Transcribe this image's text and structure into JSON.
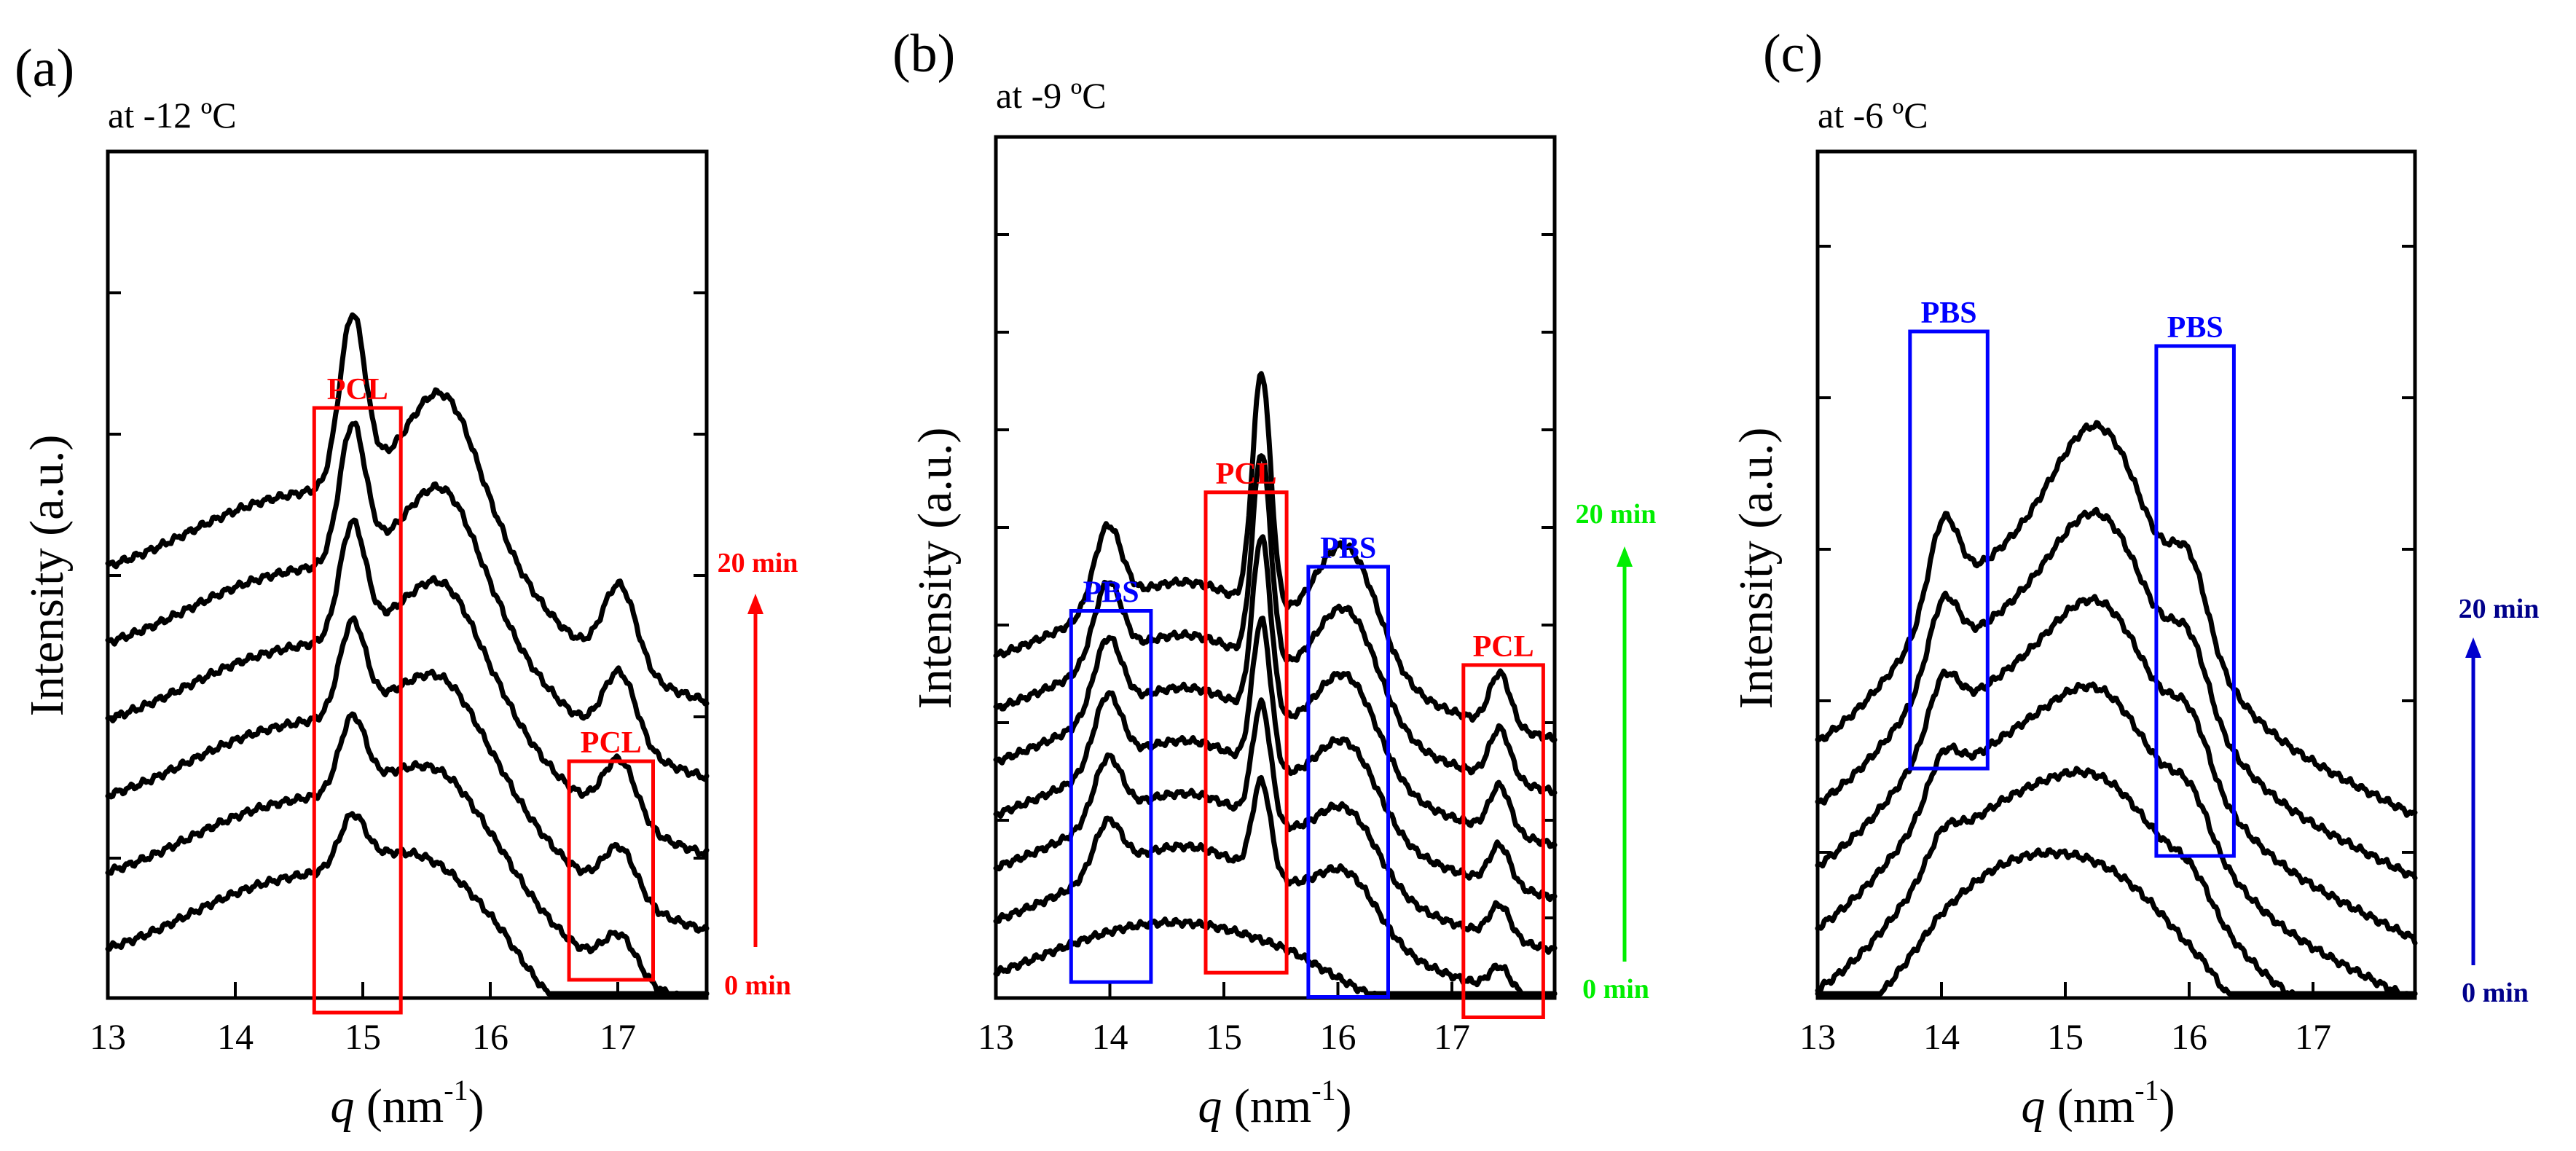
{
  "chart_data": [
    {
      "type": "line",
      "panel_label": "(a)",
      "title": "at -12 ºC",
      "xlabel_var": "q",
      "xlabel_unit": " (nm",
      "xlabel_exp": "-1",
      "xlabel_close": ")",
      "ylabel": "Intensity (a.u.)",
      "xlim": [
        13,
        17.7
      ],
      "xticks": [
        13,
        14,
        15,
        16,
        17
      ],
      "n_curves": 6,
      "peaks": [
        {
          "center": 14.92,
          "width": 0.1,
          "amp": [
            0.65,
            0.95,
            1.2,
            1.5,
            1.8,
            2.25
          ]
        },
        {
          "center": 17.02,
          "width": 0.13,
          "amp": [
            0.4,
            0.55,
            0.7,
            0.85,
            1.0,
            1.15
          ]
        }
      ],
      "boxes": [
        {
          "label": "PCL",
          "x0": 14.62,
          "x1": 15.3,
          "y0": -0.6,
          "y1": 7.7,
          "color": "#ff0000"
        },
        {
          "label": "PCL",
          "x0": 16.62,
          "x1": 17.28,
          "y0": -0.15,
          "y1": 2.85,
          "color": "#ff0000"
        }
      ],
      "time_labels": {
        "start": "0 min",
        "end": "20 min",
        "color": "#ff0000"
      }
    },
    {
      "type": "line",
      "panel_label": "(b)",
      "title": "at -9 ºC",
      "xlabel_var": "q",
      "xlabel_unit": " (nm",
      "xlabel_exp": "-1",
      "xlabel_close": ")",
      "ylabel": "Intensity (a.u.)",
      "xlim": [
        13,
        17.9
      ],
      "xticks": [
        13,
        14,
        15,
        16,
        17
      ],
      "n_curves": 7,
      "peaks": [
        {
          "center": 13.98,
          "width": 0.12,
          "amp": [
            0.0,
            0.75,
            0.9,
            1.05,
            1.1,
            1.15,
            1.2
          ]
        },
        {
          "center": 15.33,
          "width": 0.08,
          "amp": [
            0.0,
            1.4,
            1.75,
            2.2,
            2.65,
            3.1,
            3.5
          ]
        },
        {
          "center": 16.08,
          "width": 0.27,
          "amp": [
            0.0,
            0.85,
            1.0,
            1.2,
            1.4,
            1.6,
            1.75
          ]
        },
        {
          "center": 17.42,
          "width": 0.09,
          "amp": [
            0.0,
            0.35,
            0.48,
            0.58,
            0.68,
            0.74,
            0.78
          ]
        }
      ],
      "boxes": [
        {
          "label": "PBS",
          "x0": 13.66,
          "x1": 14.36,
          "y0": 0.02,
          "y1": 5.5,
          "color": "#0000ff"
        },
        {
          "label": "PCL",
          "x0": 14.84,
          "x1": 15.55,
          "y0": 0.16,
          "y1": 7.25,
          "color": "#ff0000"
        },
        {
          "label": "PBS",
          "x0": 15.74,
          "x1": 16.44,
          "y0": -0.2,
          "y1": 6.15,
          "color": "#0000ff"
        },
        {
          "label": "PCL",
          "x0": 17.1,
          "x1": 17.8,
          "y0": -0.5,
          "y1": 4.7,
          "color": "#ff0000"
        }
      ],
      "time_labels": {
        "start": "0 min",
        "end": "20 min",
        "color": "#00ee00"
      }
    },
    {
      "type": "line",
      "panel_label": "(c)",
      "title": "at -6 ºC",
      "xlabel_var": "q",
      "xlabel_unit": " (nm",
      "xlabel_exp": "-1",
      "xlabel_close": ")",
      "ylabel": "Intensity (a.u.)",
      "xlim": [
        13,
        17.85
      ],
      "xticks": [
        13,
        14,
        15,
        16,
        17
      ],
      "n_curves": 6,
      "peaks": [
        {
          "center": 14.02,
          "width": 0.12,
          "amp": [
            0.0,
            0.3,
            0.5,
            0.7,
            0.9,
            1.15
          ]
        },
        {
          "center": 16.02,
          "width": 0.14,
          "amp": [
            0.0,
            0.25,
            0.45,
            0.6,
            0.75,
            0.95
          ]
        }
      ],
      "boxes": [
        {
          "label": "PBS",
          "x0": 13.75,
          "x1": 14.38,
          "y0": 2.9,
          "y1": 8.9,
          "color": "#0000ff"
        },
        {
          "label": "PBS",
          "x0": 15.75,
          "x1": 16.38,
          "y0": 1.7,
          "y1": 8.7,
          "color": "#0000ff"
        }
      ],
      "time_labels": {
        "start": "0 min",
        "end": "20 min",
        "color": "#00008b"
      }
    }
  ]
}
